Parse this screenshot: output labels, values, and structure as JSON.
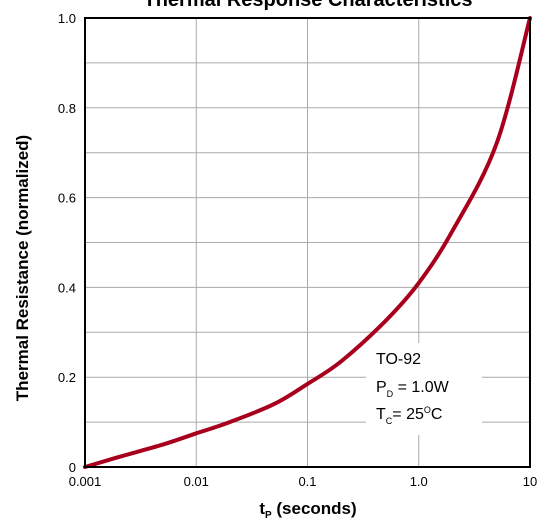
{
  "chart_data": {
    "type": "line",
    "title": "Thermal Response Characteristics",
    "xlabel": {
      "main": "t",
      "sub": "P",
      "suffix": " (seconds)"
    },
    "ylabel": "Thermal Resistance (normalized)",
    "xscale": "log",
    "xlim": [
      0.001,
      10
    ],
    "ylim": [
      0,
      1.0
    ],
    "x_ticks": [
      {
        "value": 0.001,
        "label": "0.001"
      },
      {
        "value": 0.01,
        "label": "0.01"
      },
      {
        "value": 0.1,
        "label": "0.1"
      },
      {
        "value": 1,
        "label": "1.0"
      },
      {
        "value": 10,
        "label": "10"
      }
    ],
    "y_ticks": [
      {
        "value": 0,
        "label": "0"
      },
      {
        "value": 0.2,
        "label": "0.2"
      },
      {
        "value": 0.4,
        "label": "0.4"
      },
      {
        "value": 0.6,
        "label": "0.6"
      },
      {
        "value": 0.8,
        "label": "0.8"
      },
      {
        "value": 1.0,
        "label": "1.0"
      }
    ],
    "grid": true,
    "series": [
      {
        "color": "#a8001c",
        "x": [
          0.001,
          0.002,
          0.005,
          0.01,
          0.02,
          0.05,
          0.1,
          0.2,
          0.5,
          1.0,
          2.0,
          5.0,
          10
        ],
        "y": [
          0.0,
          0.022,
          0.05,
          0.075,
          0.1,
          0.14,
          0.185,
          0.235,
          0.325,
          0.41,
          0.525,
          0.72,
          1.0
        ]
      }
    ],
    "annotation": {
      "line1": "TO-92",
      "line2": {
        "main": "P",
        "sub": "D",
        "suffix": " = 1.0W"
      },
      "line3": {
        "main": "T",
        "sub": "C",
        "suffix": "= 25",
        "sup": "O",
        "tail": "C"
      }
    }
  }
}
